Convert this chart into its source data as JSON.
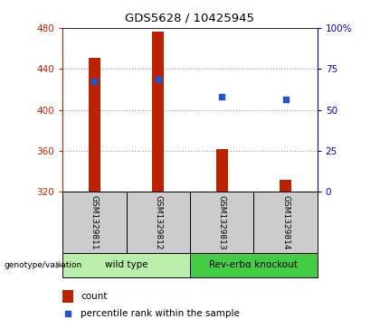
{
  "title": "GDS5628 / 10425945",
  "samples": [
    "GSM1329811",
    "GSM1329812",
    "GSM1329813",
    "GSM1329814"
  ],
  "bar_bottoms": [
    320,
    320,
    320,
    320
  ],
  "bar_tops": [
    451,
    476,
    362,
    332
  ],
  "bar_color": "#bb2200",
  "percentile_values": [
    428,
    430,
    413,
    410
  ],
  "percentile_color": "#2255cc",
  "ylim": [
    320,
    480
  ],
  "yticks_left": [
    320,
    360,
    400,
    440,
    480
  ],
  "right_axis_ticks": [
    0,
    25,
    50,
    75,
    100
  ],
  "right_axis_labels": [
    "0",
    "25",
    "50",
    "75",
    "100%"
  ],
  "right_axis_color": "#0000cc",
  "left_axis_color": "#cc2200",
  "groups": [
    {
      "label": "wild type",
      "samples": [
        0,
        1
      ],
      "color": "#bbeeaa"
    },
    {
      "label": "Rev-erbα knockout",
      "samples": [
        2,
        3
      ],
      "color": "#44cc44"
    }
  ],
  "genotype_label": "genotype/variation",
  "legend_count_label": "count",
  "legend_pct_label": "percentile rank within the sample",
  "bg_color": "#ffffff",
  "plot_bg": "#ffffff",
  "grid_color": "#999999",
  "sample_box_color": "#cccccc"
}
